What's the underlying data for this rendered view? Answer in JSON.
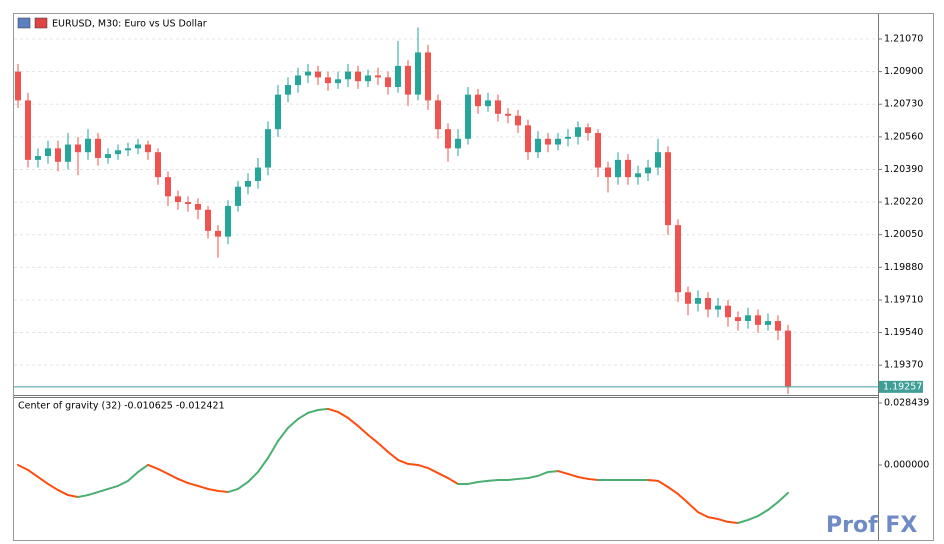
{
  "chart_data": [
    {
      "type": "candlestick",
      "title": "EURUSD, M30:  Euro vs US Dollar",
      "up_color": "#26a69a",
      "down_color": "#ef5350",
      "open": [
        1.209,
        1.2075,
        1.2044,
        1.2046,
        1.205,
        1.2043,
        1.2052,
        1.2048,
        1.2055,
        1.2045,
        1.2047,
        1.2049,
        1.205,
        1.2052,
        1.2048,
        1.2035,
        1.2025,
        1.2022,
        1.2021,
        1.2018,
        1.2007,
        1.2004,
        1.202,
        1.203,
        1.2033,
        1.204,
        1.206,
        1.2078,
        1.2083,
        1.2088,
        1.209,
        1.2087,
        1.2084,
        1.2086,
        1.209,
        1.2085,
        1.2088,
        1.2087,
        1.2082,
        1.2093,
        1.2078,
        1.21,
        1.2075,
        1.206,
        1.205,
        1.2055,
        1.2078,
        1.2072,
        1.2075,
        1.2068,
        1.2067,
        1.2062,
        1.2048,
        1.2055,
        1.2052,
        1.2055,
        1.2056,
        1.2061,
        1.2058,
        1.204,
        1.2035,
        1.2044,
        1.2035,
        1.2037,
        1.204,
        1.2048,
        1.201,
        1.1975,
        1.1969,
        1.1972,
        1.1966,
        1.1968,
        1.1962,
        1.196,
        1.1963,
        1.1958,
        1.196,
        1.1955
      ],
      "high": [
        1.2094,
        1.2079,
        1.205,
        1.2054,
        1.2054,
        1.2058,
        1.2056,
        1.206,
        1.2058,
        1.205,
        1.2052,
        1.2053,
        1.2055,
        1.2054,
        1.205,
        1.2038,
        1.2028,
        1.2025,
        1.2024,
        1.202,
        1.201,
        1.2023,
        1.2033,
        1.2037,
        1.2045,
        1.2064,
        1.2083,
        1.2087,
        1.2092,
        1.2094,
        1.2093,
        1.209,
        1.209,
        1.2094,
        1.2093,
        1.2091,
        1.2092,
        1.209,
        1.2106,
        1.2096,
        1.2113,
        1.2104,
        1.2078,
        1.2063,
        1.206,
        1.2082,
        1.2081,
        1.2079,
        1.2078,
        1.2071,
        1.207,
        1.2065,
        1.2059,
        1.2058,
        1.2058,
        1.206,
        1.2064,
        1.2063,
        1.206,
        1.2043,
        1.2048,
        1.2047,
        1.2041,
        1.2044,
        1.2055,
        1.2051,
        1.2013,
        1.1978,
        1.1976,
        1.1975,
        1.1972,
        1.1971,
        1.1965,
        1.1967,
        1.1966,
        1.1964,
        1.1963,
        1.1958
      ],
      "low": [
        1.2071,
        1.204,
        1.204,
        1.2042,
        1.2038,
        1.2039,
        1.2036,
        1.2044,
        1.2041,
        1.2042,
        1.2044,
        1.2046,
        1.2047,
        1.2044,
        1.2031,
        1.202,
        1.2018,
        1.2017,
        1.2013,
        1.2003,
        1.1993,
        1.2,
        1.2017,
        1.2026,
        1.2029,
        1.2036,
        1.2056,
        1.2074,
        1.2079,
        1.2084,
        1.2083,
        1.208,
        1.2081,
        1.2082,
        1.2081,
        1.2082,
        1.2083,
        1.2078,
        1.2079,
        1.2072,
        1.2075,
        1.207,
        1.2055,
        1.2043,
        1.2046,
        1.2052,
        1.2068,
        1.2069,
        1.2064,
        1.2063,
        1.2058,
        1.2044,
        1.2045,
        1.2048,
        1.2049,
        1.2051,
        1.2052,
        1.2054,
        1.2035,
        1.2027,
        1.2031,
        1.2031,
        1.2031,
        1.2033,
        1.2036,
        1.2005,
        1.197,
        1.1963,
        1.1965,
        1.1962,
        1.1962,
        1.1957,
        1.1955,
        1.1956,
        1.1954,
        1.1955,
        1.195,
        1.1922
      ],
      "close": [
        1.2075,
        1.2044,
        1.2046,
        1.205,
        1.2043,
        1.2052,
        1.2048,
        1.2055,
        1.2045,
        1.2047,
        1.2049,
        1.205,
        1.2052,
        1.2048,
        1.2035,
        1.2025,
        1.2022,
        1.2021,
        1.2018,
        1.2007,
        1.2004,
        1.202,
        1.203,
        1.2033,
        1.204,
        1.206,
        1.2078,
        1.2083,
        1.2088,
        1.209,
        1.2087,
        1.2084,
        1.2086,
        1.209,
        1.2085,
        1.2088,
        1.2087,
        1.2082,
        1.2093,
        1.2078,
        1.21,
        1.2075,
        1.206,
        1.205,
        1.2055,
        1.2078,
        1.2072,
        1.2075,
        1.2068,
        1.2067,
        1.2062,
        1.2048,
        1.2055,
        1.2052,
        1.2055,
        1.2056,
        1.2061,
        1.2058,
        1.204,
        1.2035,
        1.2044,
        1.2035,
        1.2037,
        1.204,
        1.2048,
        1.201,
        1.1975,
        1.1969,
        1.1972,
        1.1966,
        1.1968,
        1.1962,
        1.196,
        1.1963,
        1.1958,
        1.196,
        1.1955,
        1.1926
      ],
      "ylim": [
        1.19225,
        1.21195
      ],
      "yticks": [
        {
          "value": 1.2107,
          "label": "1.21070"
        },
        {
          "value": 1.209,
          "label": "1.20900"
        },
        {
          "value": 1.2073,
          "label": "1.20730"
        },
        {
          "value": 1.2056,
          "label": "1.20560"
        },
        {
          "value": 1.2039,
          "label": "1.20390"
        },
        {
          "value": 1.2022,
          "label": "1.20220"
        },
        {
          "value": 1.2005,
          "label": "1.20050"
        },
        {
          "value": 1.1988,
          "label": "1.19880"
        },
        {
          "value": 1.1971,
          "label": "1.19710"
        },
        {
          "value": 1.1954,
          "label": "1.19540"
        },
        {
          "value": 1.1937,
          "label": "1.19370"
        }
      ],
      "grid": true,
      "last_price": {
        "value": 1.19257,
        "label": "1.19257"
      },
      "last_price_color": "#3f9f97"
    },
    {
      "type": "line",
      "title": "Center of gravity (32) -0.010625 -0.012421",
      "up_color": "#4caf72",
      "down_color": "#ff4d0f",
      "values": [
        0,
        -0.0023,
        -0.0055,
        -0.0087,
        -0.0115,
        -0.0138,
        -0.0147,
        -0.0138,
        -0.0124,
        -0.011,
        -0.0096,
        -0.0073,
        -0.0032,
        0,
        -0.0018,
        -0.0041,
        -0.0064,
        -0.0083,
        -0.0096,
        -0.011,
        -0.0119,
        -0.0124,
        -0.011,
        -0.0078,
        -0.0032,
        0.0032,
        0.011,
        0.017,
        0.0211,
        0.0239,
        0.0252,
        0.0257,
        0.0243,
        0.0216,
        0.0179,
        0.0138,
        0.0101,
        0.006,
        0.0023,
        0.0005,
        0,
        -0.0014,
        -0.0037,
        -0.006,
        -0.0087,
        -0.0087,
        -0.0078,
        -0.0073,
        -0.0069,
        -0.0069,
        -0.0064,
        -0.006,
        -0.005,
        -0.0032,
        -0.0028,
        -0.0041,
        -0.0055,
        -0.0064,
        -0.0069,
        -0.0069,
        -0.0069,
        -0.0069,
        -0.0069,
        -0.0069,
        -0.0073,
        -0.0101,
        -0.0133,
        -0.0174,
        -0.0216,
        -0.0239,
        -0.0248,
        -0.0261,
        -0.0266,
        -0.0252,
        -0.0234,
        -0.0206,
        -0.017,
        -0.0128
      ],
      "ylim": [
        -0.0321,
        0.0307
      ],
      "yticks": [
        0.028439,
        {
          "value": 0,
          "label": "0.000000"
        }
      ]
    }
  ],
  "watermark": "Prof FX"
}
